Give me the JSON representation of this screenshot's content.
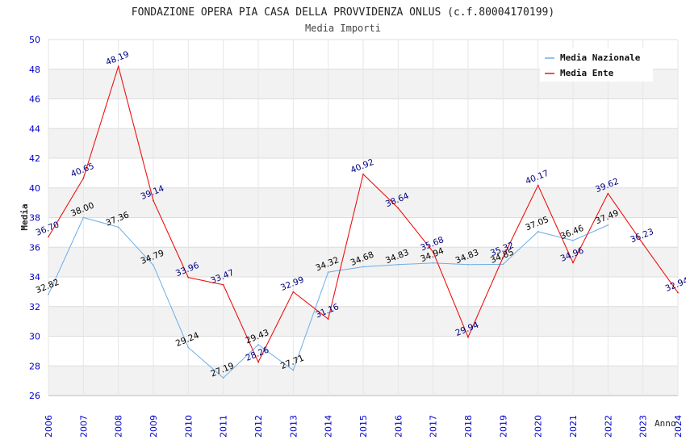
{
  "chart_data": {
    "type": "line",
    "title": "FONDAZIONE OPERA PIA CASA DELLA PROVVIDENZA ONLUS (c.f.80004170199)",
    "subtitle": "Media Importi",
    "xlabel": "Anno",
    "ylabel": "Media",
    "ylim": [
      26,
      50
    ],
    "yticks": [
      "26",
      "28",
      "30",
      "32",
      "34",
      "36",
      "38",
      "40",
      "42",
      "44",
      "46",
      "48",
      "50"
    ],
    "categories": [
      "2006",
      "2007",
      "2008",
      "2009",
      "2010",
      "2011",
      "2012",
      "2013",
      "2014",
      "2015",
      "2016",
      "2017",
      "2018",
      "2019",
      "2020",
      "2021",
      "2022",
      "2023",
      "2024"
    ],
    "legend_position": "top-right",
    "series": [
      {
        "name": "Media Nazionale",
        "color": "#6aaee8",
        "label_color": "#000000",
        "values": [
          32.82,
          38.0,
          37.36,
          34.79,
          29.24,
          27.19,
          29.43,
          27.71,
          34.32,
          34.68,
          34.83,
          34.94,
          34.83,
          34.85,
          37.05,
          36.46,
          37.49,
          null,
          null
        ],
        "labels": [
          "32.82",
          "38.00",
          "37.36",
          "34.79",
          "29.24",
          "27.19",
          "29.43",
          "27.71",
          "34.32",
          "34.68",
          "34.83",
          "34.94",
          "34.83",
          "34.85",
          "37.05",
          "36.46",
          "37.49",
          null,
          null
        ]
      },
      {
        "name": "Media Ente",
        "color": "#ee1111",
        "label_color": "#000080",
        "values": [
          36.7,
          40.65,
          48.19,
          39.14,
          33.96,
          33.47,
          28.26,
          32.99,
          31.16,
          40.92,
          38.64,
          35.68,
          29.94,
          35.32,
          40.17,
          34.96,
          39.62,
          36.23,
          32.94
        ],
        "labels": [
          "36.70",
          "40.65",
          "48.19",
          "39.14",
          "33.96",
          "33.47",
          "28.26",
          "32.99",
          "31.16",
          "40.92",
          "38.64",
          "35.68",
          "29.94",
          "35.32",
          "40.17",
          "34.96",
          "39.62",
          "36.23",
          "32.94"
        ]
      }
    ]
  }
}
